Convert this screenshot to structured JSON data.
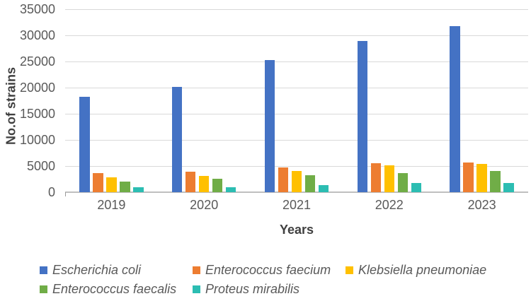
{
  "chart_data": {
    "type": "bar",
    "title": "",
    "xlabel": "Years",
    "ylabel": "No.of strains",
    "categories": [
      "2019",
      "2020",
      "2021",
      "2022",
      "2023"
    ],
    "series": [
      {
        "name": "Escherichia coli",
        "color": "#4472C4",
        "values": [
          18300,
          20100,
          25300,
          28900,
          31700
        ]
      },
      {
        "name": "Enterococcus faecium",
        "color": "#ED7D31",
        "values": [
          3600,
          3900,
          4700,
          5600,
          5700
        ]
      },
      {
        "name": "Klebsiella pneumoniae",
        "color": "#FFC000",
        "values": [
          2900,
          3100,
          4000,
          5100,
          5400
        ]
      },
      {
        "name": "Enterococcus faecalis",
        "color": "#70AD47",
        "values": [
          2100,
          2600,
          3200,
          3700,
          4100
        ]
      },
      {
        "name": "Proteus mirabilis",
        "color": "#2CBDB2",
        "values": [
          1000,
          1000,
          1300,
          1700,
          1700
        ]
      }
    ],
    "ylim": [
      0,
      35000
    ],
    "ytick_step": 5000,
    "ytick_labels": [
      "35000",
      "30000",
      "25000",
      "20000",
      "15000",
      "10000",
      "5000",
      "0"
    ],
    "grid": true,
    "legend_position": "bottom",
    "legend_style": "italic",
    "colors": {
      "gridline": "#d9d9d9",
      "axis_line": "#bfbfbf",
      "tick_text": "#595959",
      "title_text": "#404040"
    }
  }
}
